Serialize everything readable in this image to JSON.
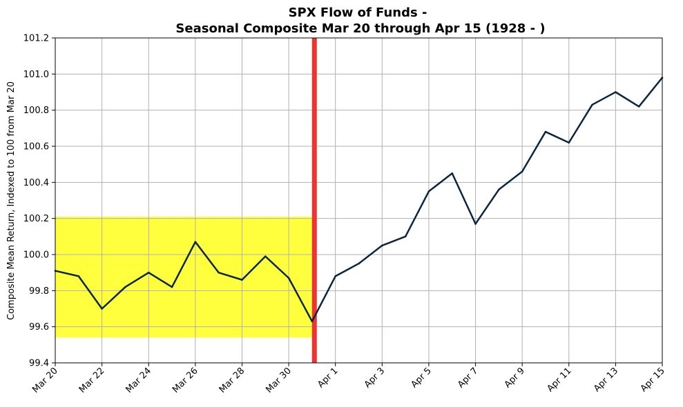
{
  "chart_data": {
    "type": "line",
    "title_line1": "SPX Flow of Funds -",
    "title_line2": "Seasonal Composite Mar 20 through Apr 15 (1928 - )",
    "xlabel": "",
    "ylabel": "Composite Mean Return, Indexed to 100 from Mar 20",
    "x_days": [
      "Mar 20",
      "Mar 21",
      "Mar 22",
      "Mar 23",
      "Mar 24",
      "Mar 25",
      "Mar 26",
      "Mar 27",
      "Mar 28",
      "Mar 29",
      "Mar 30",
      "Mar 31",
      "Apr 1",
      "Apr 2",
      "Apr 3",
      "Apr 4",
      "Apr 5",
      "Apr 6",
      "Apr 7",
      "Apr 8",
      "Apr 9",
      "Apr 10",
      "Apr 11",
      "Apr 12",
      "Apr 13",
      "Apr 14",
      "Apr 15"
    ],
    "x_tick_labels": [
      "Mar 20",
      "Mar 22",
      "Mar 24",
      "Mar 26",
      "Mar 28",
      "Mar 30",
      "Apr 1",
      "Apr 3",
      "Apr 5",
      "Apr 7",
      "Apr 9",
      "Apr 11",
      "Apr 13",
      "Apr 15"
    ],
    "x_tick_positions": [
      0,
      2,
      4,
      6,
      8,
      10,
      12,
      14,
      16,
      18,
      20,
      22,
      24,
      26
    ],
    "series": [
      {
        "name": "Composite",
        "color": "#0a2540",
        "x": [
          0,
          1,
          2,
          3,
          4,
          5,
          6,
          7,
          8,
          9,
          10,
          11,
          12,
          13,
          14,
          15,
          16,
          17,
          18,
          19,
          20,
          21,
          22,
          23,
          24,
          25,
          26
        ],
        "values": [
          99.91,
          99.88,
          99.7,
          99.82,
          99.9,
          99.82,
          100.07,
          99.9,
          99.86,
          99.99,
          99.87,
          99.63,
          99.88,
          99.95,
          100.05,
          100.1,
          100.35,
          100.45,
          100.17,
          100.36,
          100.46,
          100.68,
          100.62,
          100.83,
          100.9,
          100.82,
          100.98
        ]
      }
    ],
    "ylim": [
      99.4,
      101.2
    ],
    "y_ticks": [
      99.4,
      99.6,
      99.8,
      100.0,
      100.2,
      100.4,
      100.6,
      100.8,
      101.0,
      101.2
    ],
    "y_tick_labels": [
      "99.4",
      "99.6",
      "99.8",
      "100.0",
      "100.2",
      "100.4",
      "100.6",
      "100.8",
      "101.0",
      "101.2"
    ],
    "xlim": [
      0,
      26
    ],
    "grid": true,
    "highlight_region": {
      "x_start": 0,
      "x_end": 11.1,
      "y_start": 99.54,
      "y_end": 100.21,
      "color": "#ffff33"
    },
    "vertical_marker": {
      "x": 11.1,
      "color": "#ee3333"
    }
  }
}
